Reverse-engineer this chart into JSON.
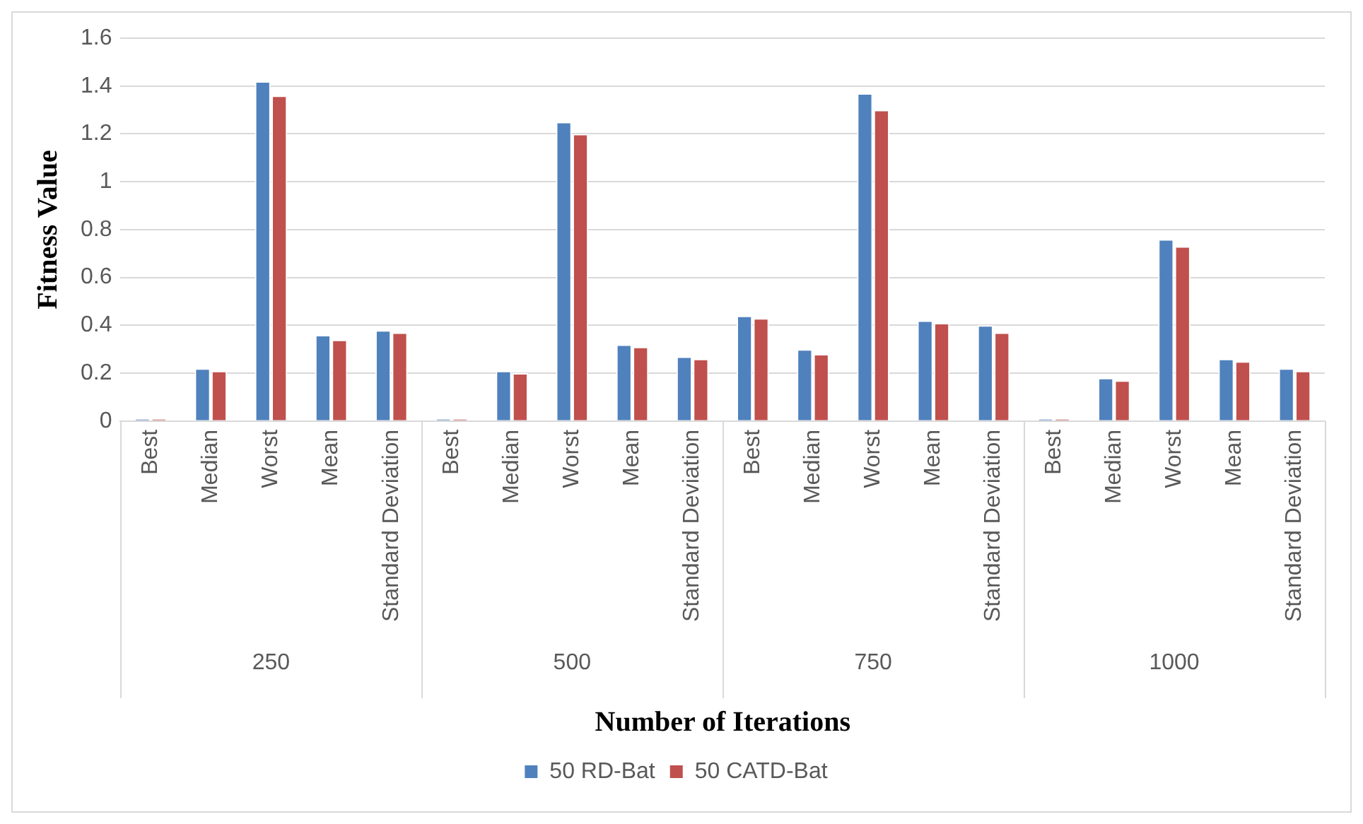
{
  "chart_data": {
    "type": "bar",
    "xlabel": "Number of Iterations",
    "ylabel": "Fitness Value",
    "categories": [
      "Best",
      "Median",
      "Worst",
      "Mean",
      "Standard Deviation",
      "Best",
      "Median",
      "Worst",
      "Mean",
      "Standard Deviation",
      "Best",
      "Median",
      "Worst",
      "Mean",
      "Standard Deviation",
      "Best",
      "Median",
      "Worst",
      "Mean",
      "Standard Deviation"
    ],
    "annotations": [
      "250",
      "500",
      "750",
      "1000"
    ],
    "series": [
      {
        "name": "50 RD-Bat",
        "color": "#4f81bd",
        "values": [
          0.01,
          0.22,
          1.42,
          0.36,
          0.38,
          0.01,
          0.21,
          1.25,
          0.32,
          0.27,
          0.44,
          0.3,
          1.37,
          0.42,
          0.4,
          0.01,
          0.18,
          0.76,
          0.26,
          0.22
        ]
      },
      {
        "name": "50 CATD-Bat",
        "color": "#c0504d",
        "values": [
          0.01,
          0.21,
          1.36,
          0.34,
          0.37,
          0.01,
          0.2,
          1.2,
          0.31,
          0.26,
          0.43,
          0.28,
          1.3,
          0.41,
          0.37,
          0.01,
          0.17,
          0.73,
          0.25,
          0.21
        ]
      }
    ],
    "ylim": [
      0,
      1.6
    ],
    "yticks": [
      0,
      0.2,
      0.4,
      0.6,
      0.8,
      1,
      1.2,
      1.4,
      1.6
    ],
    "grid": "y",
    "legend": "bottom"
  }
}
